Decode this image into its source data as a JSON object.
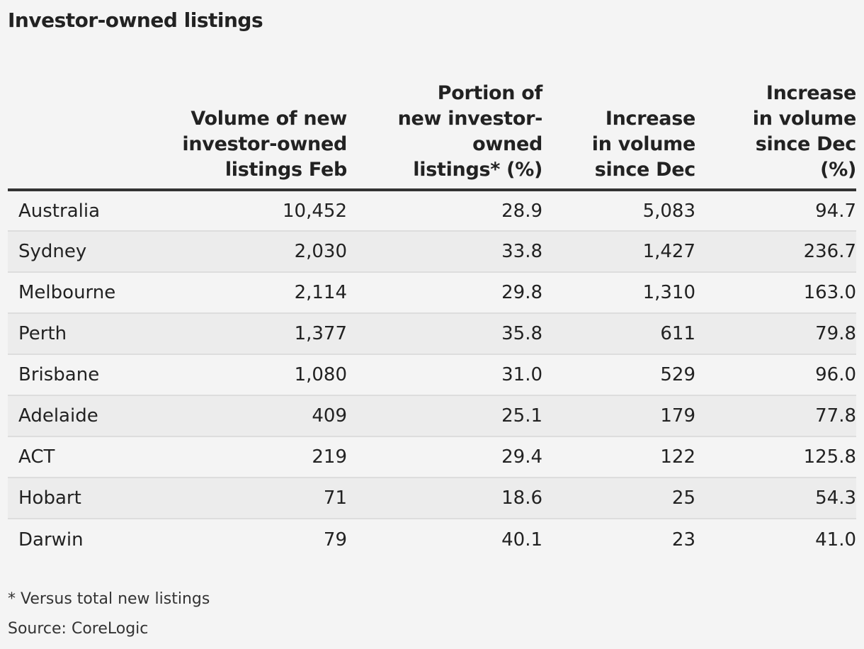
{
  "title": "Investor-owned listings",
  "footnote": "* Versus total new listings",
  "source": "Source: CoreLogic",
  "chart_data": {
    "type": "table",
    "title": "Investor-owned listings",
    "columns": [
      {
        "lines": [
          ""
        ]
      },
      {
        "lines": [
          "Volume of new",
          "investor-owned",
          "listings Feb"
        ]
      },
      {
        "lines": [
          "Portion of",
          "new investor-",
          "owned",
          "listings* (%)"
        ]
      },
      {
        "lines": [
          "Increase",
          "in volume",
          "since Dec"
        ]
      },
      {
        "lines": [
          "Increase",
          "in volume",
          "since Dec",
          "(%)"
        ]
      }
    ],
    "rows": [
      [
        "Australia",
        "10,452",
        "28.9",
        "5,083",
        "94.7"
      ],
      [
        "Sydney",
        "2,030",
        "33.8",
        "1,427",
        "236.7"
      ],
      [
        "Melbourne",
        "2,114",
        "29.8",
        "1,310",
        "163.0"
      ],
      [
        "Perth",
        "1,377",
        "35.8",
        "611",
        "79.8"
      ],
      [
        "Brisbane",
        "1,080",
        "31.0",
        "529",
        "96.0"
      ],
      [
        "Adelaide",
        "409",
        "25.1",
        "179",
        "77.8"
      ],
      [
        "ACT",
        "219",
        "29.4",
        "122",
        "125.8"
      ],
      [
        "Hobart",
        "71",
        "18.6",
        "25",
        "54.3"
      ],
      [
        "Darwin",
        "79",
        "40.1",
        "23",
        "41.0"
      ]
    ]
  }
}
